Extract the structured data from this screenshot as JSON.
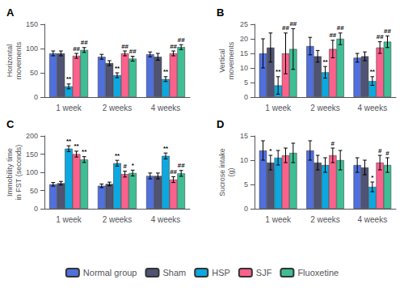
{
  "chart_data": [
    {
      "type": "bar",
      "title": "A",
      "y_label": "Horizontal\nmovements",
      "categories": [
        "1 week",
        "2 weeks",
        "4 weeks"
      ],
      "series": [
        {
          "name": "Normal group",
          "values": [
            90,
            83,
            88
          ],
          "errors": [
            5,
            5,
            5
          ],
          "annotations": [
            null,
            null,
            null
          ]
        },
        {
          "name": "Sham",
          "values": [
            90,
            70,
            83
          ],
          "errors": [
            5,
            5,
            7
          ],
          "annotations": [
            null,
            null,
            null
          ]
        },
        {
          "name": "HSP",
          "values": [
            22,
            45,
            37
          ],
          "errors": [
            5,
            5,
            5
          ],
          "annotations": [
            "**",
            "**",
            "**"
          ]
        },
        {
          "name": "SJF",
          "values": [
            85,
            90,
            90
          ],
          "errors": [
            5,
            5,
            5
          ],
          "annotations": [
            "##",
            "##",
            "##"
          ]
        },
        {
          "name": "Fluoxetine",
          "values": [
            97,
            79,
            103
          ],
          "errors": [
            5,
            5,
            5
          ],
          "annotations": [
            "##",
            "##",
            "##"
          ]
        }
      ],
      "ylim": [
        0,
        150
      ],
      "yticks": [
        0,
        50,
        100,
        150
      ],
      "grid": false,
      "legend": "bottom"
    },
    {
      "type": "bar",
      "title": "B",
      "y_label": "Vertical\nmovements",
      "categories": [
        "1 week",
        "2 weeks",
        "4 weeks"
      ],
      "series": [
        {
          "name": "Normal group",
          "values": [
            15,
            17.5,
            13.5
          ],
          "errors": [
            5,
            3,
            1.5
          ],
          "annotations": [
            null,
            null,
            null
          ]
        },
        {
          "name": "Sham",
          "values": [
            17,
            14,
            14
          ],
          "errors": [
            5,
            2,
            1.5
          ],
          "annotations": [
            null,
            null,
            null
          ]
        },
        {
          "name": "HSP",
          "values": [
            4,
            8.5,
            5.5
          ],
          "errors": [
            3,
            2,
            1.5
          ],
          "annotations": [
            "**",
            "**",
            "**"
          ]
        },
        {
          "name": "SJF",
          "values": [
            15,
            16.5,
            17
          ],
          "errors": [
            7,
            3,
            2
          ],
          "annotations": [
            "##",
            "##",
            "##"
          ]
        },
        {
          "name": "Fluoxetine",
          "values": [
            16.5,
            20,
            19
          ],
          "errors": [
            7,
            2,
            2
          ],
          "annotations": [
            "##",
            "##",
            "##"
          ]
        }
      ],
      "ylim": [
        0,
        25
      ],
      "yticks": [
        0,
        5,
        10,
        15,
        20,
        25
      ],
      "grid": false,
      "legend": "bottom"
    },
    {
      "type": "bar",
      "title": "C",
      "y_label": "Immobility time\nin FST (seconds)",
      "categories": [
        "1 week",
        "2 weeks",
        "4 weeks"
      ],
      "series": [
        {
          "name": "Normal group",
          "values": [
            67,
            63,
            90
          ],
          "errors": [
            5,
            5,
            8
          ],
          "annotations": [
            null,
            null,
            null
          ]
        },
        {
          "name": "Sham",
          "values": [
            70,
            68,
            90
          ],
          "errors": [
            5,
            5,
            8
          ],
          "annotations": [
            null,
            null,
            null
          ]
        },
        {
          "name": "HSP",
          "values": [
            165,
            125,
            145
          ],
          "errors": [
            8,
            8,
            8
          ],
          "annotations": [
            "**",
            "**",
            "**"
          ]
        },
        {
          "name": "SJF",
          "values": [
            150,
            95,
            80
          ],
          "errors": [
            8,
            8,
            8
          ],
          "annotations": [
            "**",
            "#",
            "##"
          ]
        },
        {
          "name": "Fluoxetine",
          "values": [
            135,
            98,
            97
          ],
          "errors": [
            8,
            8,
            8
          ],
          "annotations": [
            "**",
            "*",
            "##"
          ]
        }
      ],
      "ylim": [
        0,
        200
      ],
      "yticks": [
        0,
        50,
        100,
        150,
        200
      ],
      "grid": false,
      "legend": "bottom"
    },
    {
      "type": "bar",
      "title": "D",
      "y_label": "Sucrose intake\n(g)",
      "categories": [
        "1 week",
        "2 weeks",
        "4 weeks"
      ],
      "series": [
        {
          "name": "Normal group",
          "values": [
            12,
            12,
            9
          ],
          "errors": [
            2,
            2,
            1.5
          ],
          "annotations": [
            null,
            null,
            null
          ]
        },
        {
          "name": "Sham",
          "values": [
            9.5,
            9.5,
            8.5
          ],
          "errors": [
            1.5,
            1.5,
            1.5
          ],
          "annotations": [
            "*",
            null,
            null
          ]
        },
        {
          "name": "HSP",
          "values": [
            10.5,
            9,
            4.5
          ],
          "errors": [
            1.5,
            1.5,
            1
          ],
          "annotations": [
            null,
            null,
            "*"
          ]
        },
        {
          "name": "SJF",
          "values": [
            11,
            11,
            9.5
          ],
          "errors": [
            1.5,
            1.5,
            1.5
          ],
          "annotations": [
            null,
            "#",
            "#"
          ]
        },
        {
          "name": "Fluoxetine",
          "values": [
            11.5,
            10,
            9
          ],
          "errors": [
            2,
            2,
            1.5
          ],
          "annotations": [
            null,
            null,
            "#"
          ]
        }
      ],
      "ylim": [
        0,
        15
      ],
      "yticks": [
        0,
        5,
        10,
        15
      ],
      "grid": false,
      "legend": "bottom"
    }
  ]
}
